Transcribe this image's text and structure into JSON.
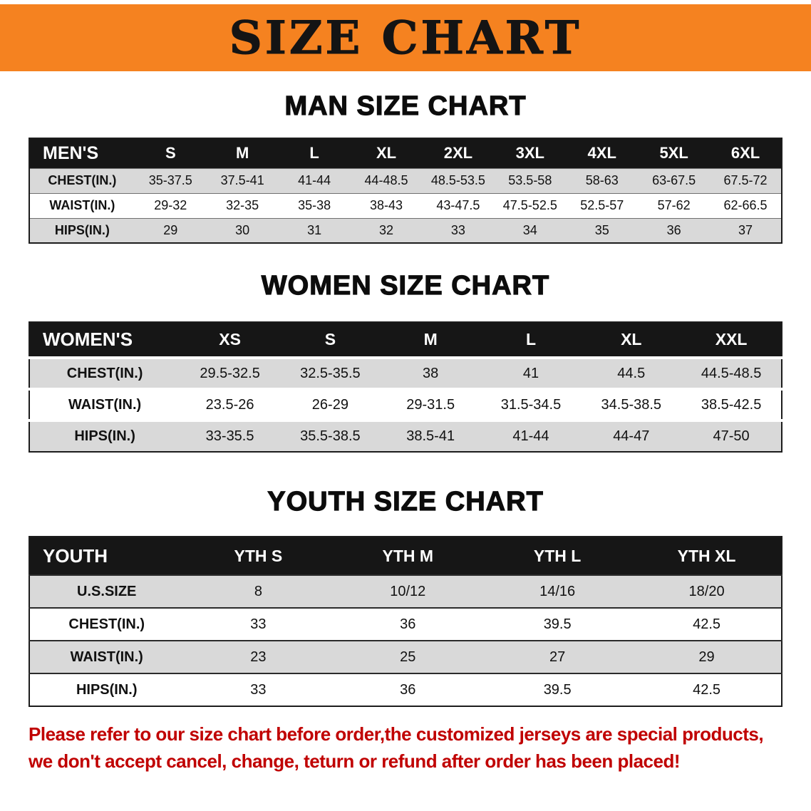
{
  "banner": {
    "title": "SIZE CHART"
  },
  "sections": [
    {
      "heading": "MAN SIZE CHART",
      "table": {
        "header": [
          "MEN'S",
          "S",
          "M",
          "L",
          "XL",
          "2XL",
          "3XL",
          "4XL",
          "5XL",
          "6XL"
        ],
        "rows": [
          [
            "CHEST(IN.)",
            "35-37.5",
            "37.5-41",
            "41-44",
            "44-48.5",
            "48.5-53.5",
            "53.5-58",
            "58-63",
            "63-67.5",
            "67.5-72"
          ],
          [
            "WAIST(IN.)",
            "29-32",
            "32-35",
            "35-38",
            "38-43",
            "43-47.5",
            "47.5-52.5",
            "52.5-57",
            "57-62",
            "62-66.5"
          ],
          [
            "HIPS(IN.)",
            "29",
            "30",
            "31",
            "32",
            "33",
            "34",
            "35",
            "36",
            "37"
          ]
        ]
      }
    },
    {
      "heading": "WOMEN SIZE CHART",
      "table": {
        "header": [
          "WOMEN'S",
          "XS",
          "S",
          "M",
          "L",
          "XL",
          "XXL"
        ],
        "rows": [
          [
            "CHEST(IN.)",
            "29.5-32.5",
            "32.5-35.5",
            "38",
            "41",
            "44.5",
            "44.5-48.5"
          ],
          [
            "WAIST(IN.)",
            "23.5-26",
            "26-29",
            "29-31.5",
            "31.5-34.5",
            "34.5-38.5",
            "38.5-42.5"
          ],
          [
            "HIPS(IN.)",
            "33-35.5",
            "35.5-38.5",
            "38.5-41",
            "41-44",
            "44-47",
            "47-50"
          ]
        ]
      }
    },
    {
      "heading": "YOUTH SIZE CHART",
      "table": {
        "header": [
          "YOUTH",
          "YTH S",
          "YTH M",
          "YTH L",
          "YTH XL"
        ],
        "rows": [
          [
            "U.S.SIZE",
            "8",
            "10/12",
            "14/16",
            "18/20"
          ],
          [
            "CHEST(IN.)",
            "33",
            "36",
            "39.5",
            "42.5"
          ],
          [
            "WAIST(IN.)",
            "23",
            "25",
            "27",
            "29"
          ],
          [
            "HIPS(IN.)",
            "33",
            "36",
            "39.5",
            "42.5"
          ]
        ]
      }
    }
  ],
  "footer": {
    "line1": "Please refer to our size chart before order,the customized jerseys are special products,",
    "line2": "we don't accept cancel, change, teturn or refund after order has been placed!"
  },
  "colors": {
    "banner_bg": "#f58220",
    "table_header_bar": "#161616",
    "row_alt": "#d9d9d9",
    "footer_text": "#c00000"
  }
}
